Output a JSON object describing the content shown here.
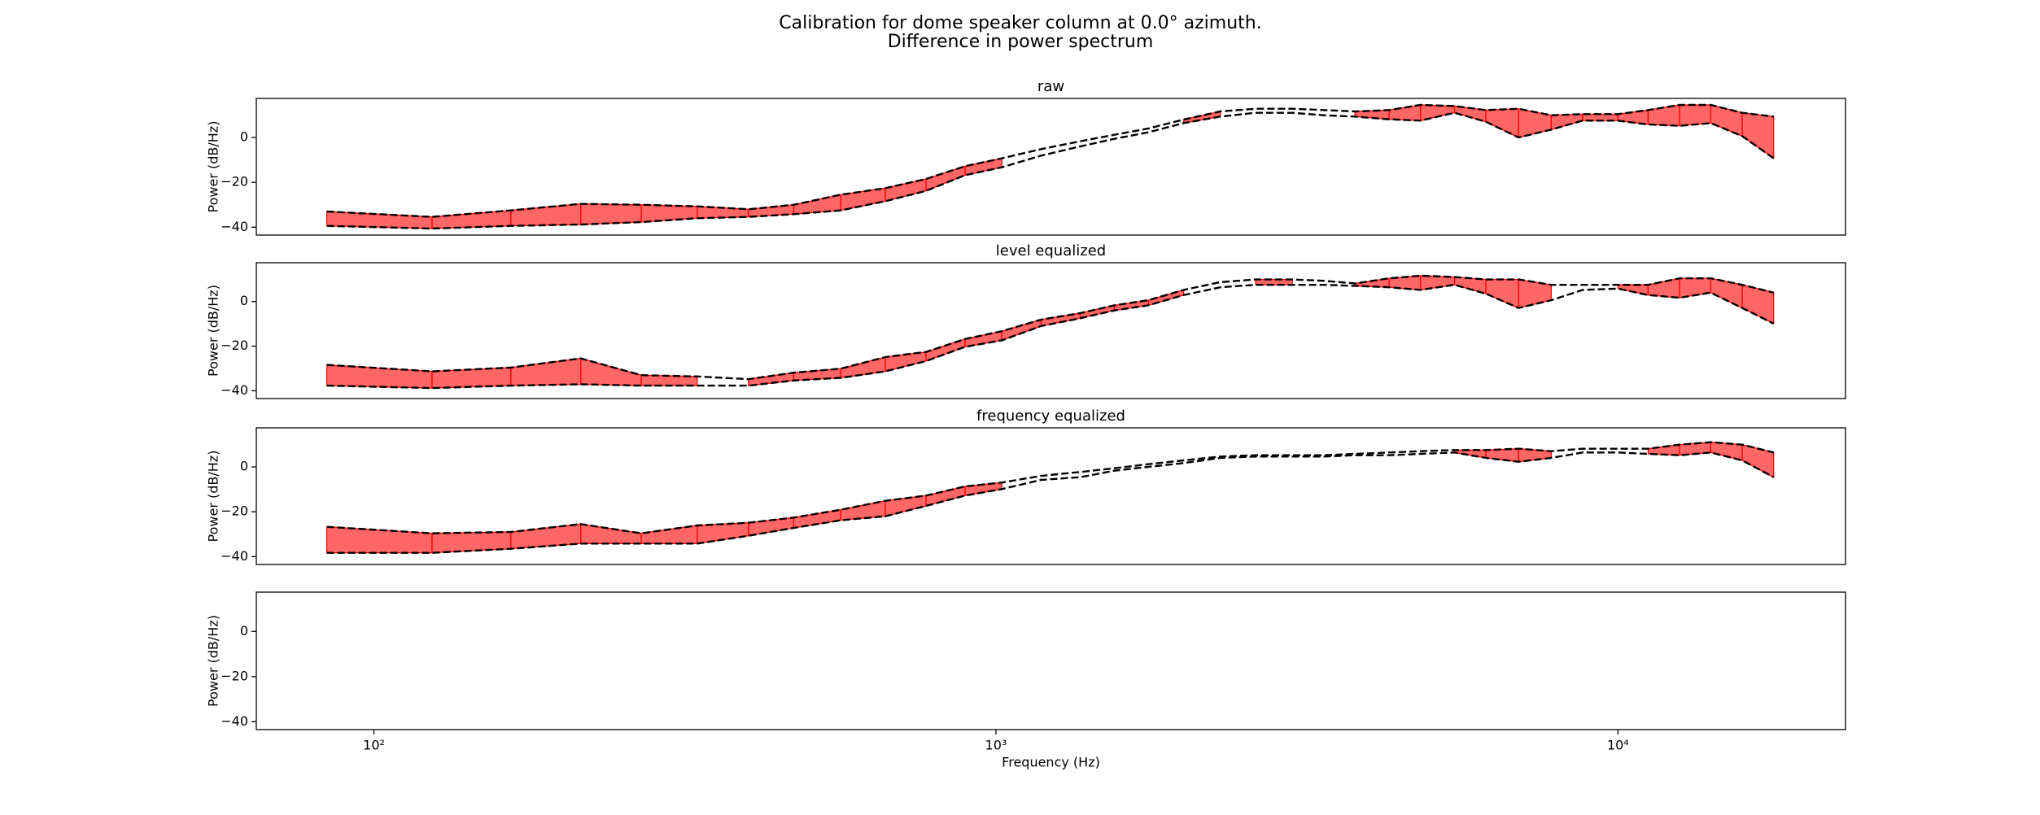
{
  "suptitle": [
    "Calibration for dome speaker column at 0.0° azimuth.",
    "Difference in power spectrum"
  ],
  "chart_data": [
    {
      "type": "line",
      "title": "raw",
      "ylabel": "Power (dB/Hz)",
      "xscale": "log",
      "x": [
        84,
        124,
        166,
        215,
        269,
        331,
        400,
        473,
        563,
        664,
        772,
        892,
        1022,
        1182,
        1366,
        1550,
        1758,
        2004,
        2295,
        2615,
        2995,
        3364,
        3778,
        4286,
        4814,
        5460,
        6132,
        6922,
        7812,
        8774,
        10000,
        11180,
        12560,
        14100,
        15840,
        17800
      ],
      "xlim": [
        64.7,
        23220
      ],
      "ylim": [
        -43.5,
        17.4
      ],
      "yticks": [
        {
          "value": -40,
          "label": "−40"
        },
        {
          "value": -20,
          "label": "−20"
        },
        0
      ],
      "series": [
        {
          "color": "#000000",
          "linestyle": "dashed",
          "values": [
            -33,
            -35.4,
            -32.5,
            -29.6,
            -30,
            -30.7,
            -32,
            -30,
            -25.5,
            -22.6,
            -18.5,
            -12.8,
            -9.3,
            -5.2,
            -1.7,
            1.2,
            4,
            8,
            11.6,
            12.8,
            12.8,
            12.2,
            11.6,
            12.2,
            14.5,
            14,
            12.2,
            12.8,
            9.9,
            10.4,
            10.4,
            12.2,
            14.5,
            14.5,
            11,
            9.3
          ]
        },
        {
          "color": "#000000",
          "linestyle": "dashed",
          "values": [
            -39.4,
            -40.6,
            -39.4,
            -38.8,
            -37.7,
            -36,
            -35.4,
            -34.2,
            -32.5,
            -28.4,
            -23.8,
            -16.8,
            -13.3,
            -8.1,
            -4,
            -0.6,
            2.3,
            6.4,
            9.3,
            11,
            11,
            9.9,
            9.3,
            8.1,
            7.5,
            11,
            7,
            0,
            3.5,
            7.5,
            7.5,
            5.8,
            5.2,
            6.4,
            0.6,
            -9.3
          ]
        }
      ],
      "fill_between": {
        "color": "#ff0000",
        "alpha": 0.6,
        "filled": [
          true,
          true,
          true,
          true,
          true,
          true,
          true,
          true,
          true,
          true,
          true,
          true,
          false,
          false,
          false,
          false,
          false,
          true,
          false,
          false,
          false,
          false,
          true,
          true,
          true,
          true,
          true,
          true,
          true,
          true,
          true,
          true,
          true,
          true,
          true
        ]
      }
    },
    {
      "type": "line",
      "title": "level equalized",
      "ylabel": "Power (dB/Hz)",
      "xscale": "log",
      "x": [
        84,
        124,
        166,
        215,
        269,
        331,
        400,
        473,
        563,
        664,
        772,
        892,
        1022,
        1182,
        1366,
        1550,
        1758,
        2004,
        2295,
        2615,
        2995,
        3364,
        3778,
        4286,
        4814,
        5460,
        6132,
        6922,
        7812,
        8774,
        10000,
        11180,
        12560,
        14100,
        15840,
        17800
      ],
      "xlim": [
        64.7,
        23220
      ],
      "ylim": [
        -43.5,
        17.4
      ],
      "yticks": [
        {
          "value": -40,
          "label": "−40"
        },
        {
          "value": -20,
          "label": "−20"
        },
        0
      ],
      "series": [
        {
          "color": "#000000",
          "linestyle": "dashed",
          "values": [
            -28.4,
            -31.3,
            -29.6,
            -25.5,
            -33,
            -33.6,
            -34.8,
            -31.9,
            -30.1,
            -24.9,
            -22.6,
            -16.8,
            -13.3,
            -8.1,
            -5.2,
            -1.7,
            0.6,
            5.2,
            8.7,
            9.9,
            9.9,
            9.3,
            8.1,
            10.4,
            11.6,
            11,
            9.9,
            9.9,
            7.5,
            7.5,
            7.5,
            7.5,
            10.4,
            10.4,
            7.5,
            4
          ]
        },
        {
          "color": "#000000",
          "linestyle": "dashed",
          "values": [
            -37.7,
            -38.8,
            -37.7,
            -37.1,
            -37.7,
            -37.7,
            -37.7,
            -35.4,
            -34.2,
            -31.3,
            -26.7,
            -20.3,
            -17.4,
            -11,
            -7.5,
            -4,
            -1.7,
            2.9,
            6.4,
            7.5,
            7.5,
            7.5,
            7,
            6.4,
            5.2,
            7.5,
            3.5,
            -2.9,
            0.6,
            5.2,
            5.8,
            2.9,
            1.7,
            4,
            -2.9,
            -9.9
          ]
        }
      ],
      "fill_between": {
        "color": "#ff0000",
        "alpha": 0.6,
        "filled": [
          true,
          true,
          true,
          true,
          true,
          false,
          true,
          true,
          true,
          true,
          true,
          true,
          true,
          true,
          true,
          true,
          true,
          false,
          false,
          true,
          false,
          false,
          true,
          true,
          true,
          true,
          true,
          true,
          false,
          false,
          true,
          true,
          true,
          true,
          true
        ]
      }
    },
    {
      "type": "line",
      "title": "frequency equalized",
      "ylabel": "Power (dB/Hz)",
      "xscale": "log",
      "x": [
        84,
        124,
        166,
        215,
        269,
        331,
        400,
        473,
        563,
        664,
        772,
        892,
        1022,
        1182,
        1366,
        1550,
        1758,
        2004,
        2295,
        2615,
        2995,
        3364,
        3778,
        4286,
        4814,
        5460,
        6132,
        6922,
        7812,
        8774,
        10000,
        11180,
        12560,
        14100,
        15840,
        17800
      ],
      "xlim": [
        64.7,
        23220
      ],
      "ylim": [
        -43.5,
        17.4
      ],
      "yticks": [
        {
          "value": -40,
          "label": "−40"
        },
        {
          "value": -20,
          "label": "−20"
        },
        0
      ],
      "series": [
        {
          "color": "#000000",
          "linestyle": "dashed",
          "values": [
            -26.7,
            -29.6,
            -29,
            -25.5,
            -29.6,
            -26.1,
            -24.9,
            -22.6,
            -19.1,
            -15.1,
            -12.8,
            -8.7,
            -7,
            -4,
            -2.3,
            -0.6,
            1.2,
            2.9,
            4.6,
            5.2,
            5.2,
            5.2,
            5.8,
            6.4,
            7,
            7.5,
            7.5,
            8.1,
            7,
            8.1,
            8.1,
            8.1,
            9.9,
            11,
            9.9,
            6.4
          ]
        },
        {
          "color": "#000000",
          "linestyle": "dashed",
          "values": [
            -38.3,
            -38.3,
            -36.5,
            -34.2,
            -34.2,
            -34.2,
            -30.7,
            -27.2,
            -23.8,
            -22,
            -17.4,
            -12.8,
            -9.9,
            -5.8,
            -4.6,
            -1.7,
            0,
            1.7,
            4,
            4.6,
            4.6,
            4.6,
            5.2,
            5.2,
            5.8,
            6.4,
            4,
            2.3,
            4,
            6.4,
            6.4,
            5.8,
            5.2,
            6.4,
            2.9,
            -4.6
          ]
        }
      ],
      "fill_between": {
        "color": "#ff0000",
        "alpha": 0.6,
        "filled": [
          true,
          true,
          true,
          true,
          true,
          true,
          true,
          true,
          true,
          true,
          true,
          true,
          false,
          false,
          false,
          false,
          false,
          false,
          false,
          false,
          false,
          false,
          false,
          false,
          false,
          true,
          true,
          true,
          false,
          false,
          false,
          true,
          true,
          true,
          true
        ]
      }
    },
    {
      "type": "line",
      "ylabel": "Power (dB/Hz)",
      "xscale": "log",
      "xlabel": "Frequency (Hz)",
      "xlim": [
        64.7,
        23220
      ],
      "ylim": [
        -43.5,
        17.4
      ],
      "yticks": [
        {
          "value": -40,
          "label": "−40"
        },
        {
          "value": -20,
          "label": "−20"
        },
        0
      ],
      "xticks": [
        {
          "value": 100,
          "label": "10²"
        },
        {
          "value": 1000,
          "label": "10³"
        },
        {
          "value": 10000,
          "label": "10⁴"
        }
      ]
    }
  ]
}
